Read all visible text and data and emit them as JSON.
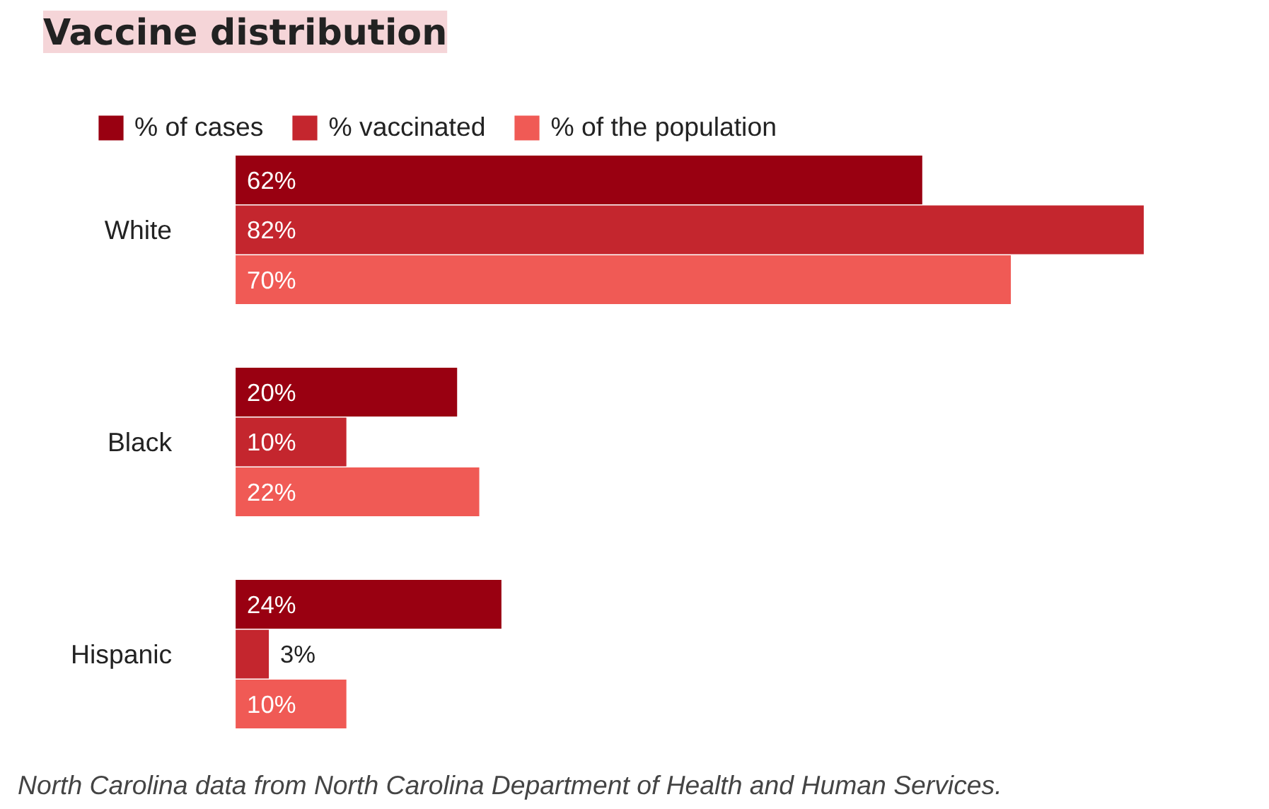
{
  "chart_data": {
    "type": "bar",
    "orientation": "horizontal",
    "title": "Vaccine distribution",
    "categories": [
      "White",
      "Black",
      "Hispanic"
    ],
    "series": [
      {
        "name": "% of cases",
        "color": "#990011",
        "values": [
          62,
          20,
          24
        ],
        "value_labels": [
          "62%",
          "20%",
          "24%"
        ]
      },
      {
        "name": "% vaccinated",
        "color": "#c4262e",
        "values": [
          82,
          10,
          3
        ],
        "value_labels": [
          "82%",
          "10%",
          "3%"
        ]
      },
      {
        "name": "% of the population",
        "color": "#f05a55",
        "values": [
          70,
          22,
          10
        ],
        "value_labels": [
          "70%",
          "22%",
          "10%"
        ]
      }
    ],
    "legend": "top left",
    "annotations": [
      "North Carolina data from North Carolina Department of Health and Human Services."
    ]
  }
}
